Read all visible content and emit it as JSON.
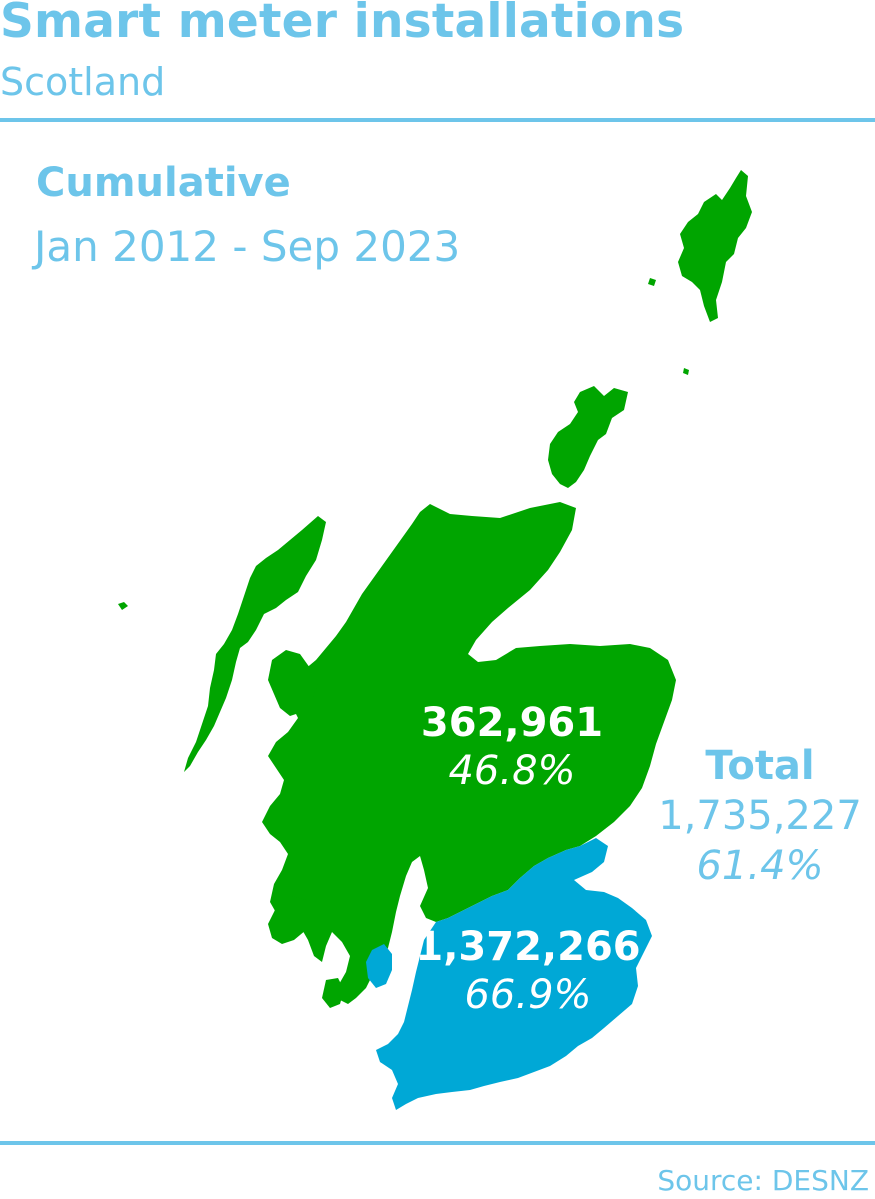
{
  "header": {
    "title": "Smart meter installations",
    "subtitle": "Scotland"
  },
  "period": {
    "heading": "Cumulative",
    "range": "Jan 2012 - Sep 2023"
  },
  "regions": [
    {
      "id": "north",
      "count": "362,961",
      "percent": "46.8%",
      "color": "#00a500"
    },
    {
      "id": "south",
      "count": "1,372,266",
      "percent": "66.9%",
      "color": "#00a8d6"
    }
  ],
  "total": {
    "heading": "Total",
    "count": "1,735,227",
    "percent": "61.4%"
  },
  "source": "Source: DESNZ",
  "colors": {
    "accent": "#6dc5ea",
    "north_region": "#00a500",
    "south_region": "#00a8d6"
  }
}
